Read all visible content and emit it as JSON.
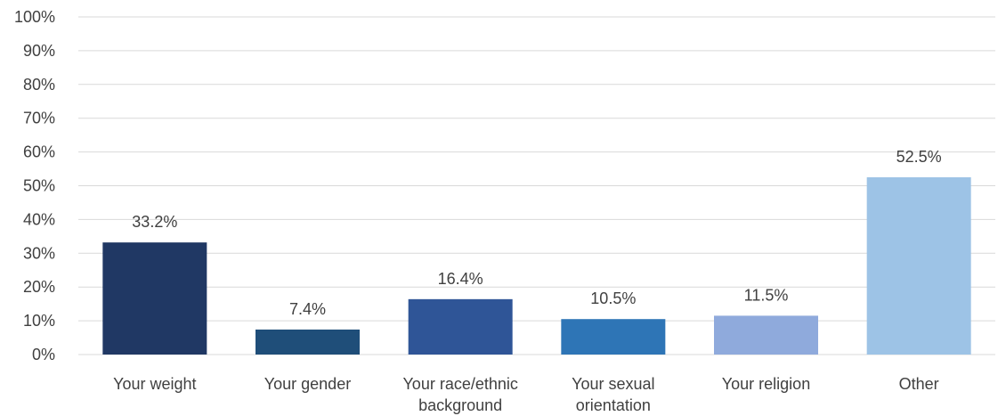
{
  "chart_data": {
    "type": "bar",
    "title": "",
    "xlabel": "",
    "ylabel": "",
    "ylim": [
      0,
      100
    ],
    "y_ticks": [
      "0%",
      "10%",
      "20%",
      "30%",
      "40%",
      "50%",
      "60%",
      "70%",
      "80%",
      "90%",
      "100%"
    ],
    "grid": true,
    "legend": "none",
    "categories": [
      [
        "Your weight"
      ],
      [
        "Your gender"
      ],
      [
        "Your race/ethnic",
        "background"
      ],
      [
        "Your sexual",
        "orientation"
      ],
      [
        "Your religion"
      ],
      [
        "Other"
      ]
    ],
    "values": [
      33.2,
      7.4,
      16.4,
      10.5,
      11.5,
      52.5
    ],
    "data_labels": [
      "33.2%",
      "7.4%",
      "16.4%",
      "10.5%",
      "11.5%",
      "52.5%"
    ],
    "colors": [
      "#203864",
      "#1f4e79",
      "#2f5597",
      "#2e75b6",
      "#8faadc",
      "#9dc3e6"
    ]
  }
}
